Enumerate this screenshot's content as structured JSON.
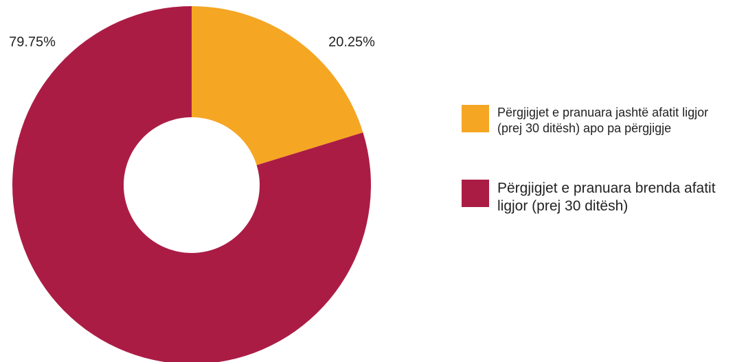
{
  "chart_data": {
    "type": "donut",
    "categories": [
      "Përgjigjet e pranuara jashtë afatit ligjor (prej 30 ditësh) apo pa përgjigje",
      "Përgjigjet e pranuara brenda afatit ligjor (prej 30 ditësh)"
    ],
    "values": [
      20.25,
      79.75
    ],
    "value_labels": [
      "20.25%",
      "79.75%"
    ],
    "colors": [
      "#f5a623",
      "#ab1c45"
    ]
  }
}
